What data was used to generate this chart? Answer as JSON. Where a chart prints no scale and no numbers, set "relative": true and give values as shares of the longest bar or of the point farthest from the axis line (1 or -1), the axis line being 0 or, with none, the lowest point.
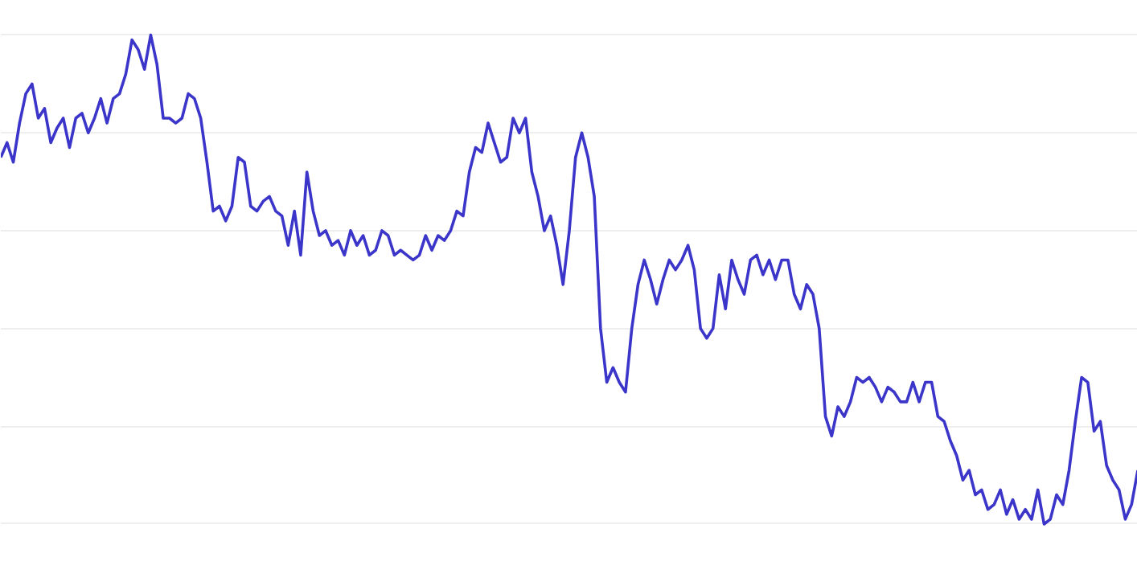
{
  "chart_data": {
    "type": "line",
    "relative": true,
    "grid": "y",
    "marker": "none",
    "line_style": "solid",
    "categories": [
      null,
      null,
      null,
      null,
      null,
      null,
      null,
      null,
      null,
      null,
      null,
      null,
      null,
      null,
      null,
      null,
      null,
      null,
      null,
      null,
      null,
      null,
      null,
      null,
      null,
      null,
      null,
      null,
      null,
      null,
      null,
      null,
      null,
      null,
      null,
      null,
      null,
      null,
      null,
      null,
      null,
      null,
      null,
      null,
      null,
      null,
      null,
      null,
      null,
      null,
      null,
      null,
      null,
      null,
      null,
      null,
      null,
      null,
      null,
      null,
      null,
      null,
      null,
      null,
      null,
      null,
      null,
      null,
      null,
      null,
      null,
      null,
      null,
      null,
      null,
      null,
      null,
      null,
      null,
      null,
      null,
      null,
      null,
      null,
      null,
      null,
      null,
      null,
      null,
      null,
      null,
      null,
      null,
      null,
      null,
      null,
      null,
      null,
      null,
      null,
      null,
      null,
      null,
      null,
      null,
      null,
      null,
      null,
      null,
      null,
      null,
      null,
      null,
      null,
      null,
      null,
      null,
      null,
      null,
      null,
      null,
      null,
      null,
      null,
      null,
      null,
      null,
      null,
      null,
      null,
      null,
      null,
      null,
      null,
      null,
      null,
      null,
      null,
      null,
      null,
      null,
      null,
      null,
      null,
      null,
      null,
      null,
      null,
      null,
      null,
      null,
      null,
      null,
      null,
      null,
      null,
      null,
      null,
      null,
      null,
      null,
      null,
      null,
      null,
      null,
      null,
      null,
      null,
      null,
      null,
      null,
      null,
      null,
      null,
      null,
      null,
      null,
      null,
      null,
      null,
      null,
      null,
      null
    ],
    "series": [
      {
        "color": "#3b36c9",
        "values": [
          0.75,
          0.78,
          0.74,
          0.82,
          0.88,
          0.9,
          0.83,
          0.85,
          0.78,
          0.81,
          0.83,
          0.77,
          0.83,
          0.84,
          0.8,
          0.83,
          0.87,
          0.82,
          0.87,
          0.88,
          0.92,
          0.99,
          0.97,
          0.93,
          1.0,
          0.94,
          0.83,
          0.83,
          0.82,
          0.83,
          0.88,
          0.87,
          0.83,
          0.74,
          0.64,
          0.65,
          0.62,
          0.65,
          0.75,
          0.74,
          0.65,
          0.64,
          0.66,
          0.67,
          0.64,
          0.63,
          0.57,
          0.64,
          0.55,
          0.72,
          0.64,
          0.59,
          0.6,
          0.57,
          0.58,
          0.55,
          0.6,
          0.57,
          0.59,
          0.55,
          0.56,
          0.6,
          0.59,
          0.55,
          0.56,
          0.55,
          0.54,
          0.55,
          0.59,
          0.56,
          0.59,
          0.58,
          0.6,
          0.64,
          0.63,
          0.72,
          0.77,
          0.76,
          0.82,
          0.78,
          0.74,
          0.75,
          0.83,
          0.8,
          0.83,
          0.72,
          0.67,
          0.6,
          0.63,
          0.57,
          0.49,
          0.6,
          0.75,
          0.8,
          0.75,
          0.67,
          0.4,
          0.29,
          0.32,
          0.29,
          0.27,
          0.4,
          0.49,
          0.54,
          0.5,
          0.45,
          0.5,
          0.54,
          0.52,
          0.54,
          0.57,
          0.52,
          0.4,
          0.38,
          0.4,
          0.51,
          0.44,
          0.54,
          0.5,
          0.47,
          0.54,
          0.55,
          0.51,
          0.54,
          0.5,
          0.54,
          0.54,
          0.47,
          0.44,
          0.49,
          0.47,
          0.4,
          0.22,
          0.18,
          0.24,
          0.22,
          0.25,
          0.3,
          0.29,
          0.3,
          0.28,
          0.25,
          0.28,
          0.27,
          0.25,
          0.25,
          0.29,
          0.25,
          0.29,
          0.29,
          0.22,
          0.21,
          0.17,
          0.14,
          0.09,
          0.11,
          0.06,
          0.07,
          0.03,
          0.04,
          0.07,
          0.02,
          0.05,
          0.01,
          0.03,
          0.01,
          0.07,
          0.0,
          0.01,
          0.06,
          0.04,
          0.11,
          0.21,
          0.3,
          0.29,
          0.19,
          0.21,
          0.12,
          0.09,
          0.07,
          0.01,
          0.04,
          0.11
        ]
      }
    ]
  }
}
